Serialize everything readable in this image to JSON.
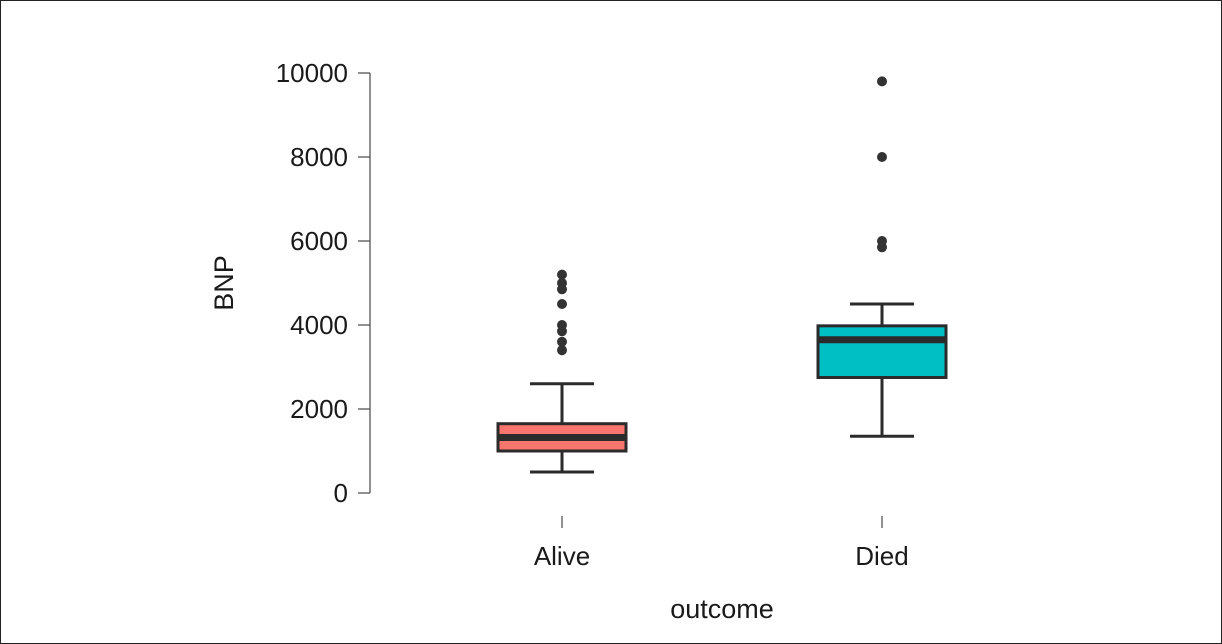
{
  "chart_data": {
    "type": "box",
    "xlabel": "outcome",
    "ylabel": "BNP",
    "ylim": [
      0,
      10000
    ],
    "yticks": [
      0,
      2000,
      4000,
      6000,
      8000,
      10000
    ],
    "ytick_labels": [
      "0",
      "2000",
      "4000",
      "6000",
      "8000",
      "10000"
    ],
    "grid": false,
    "legend": "none",
    "categories": [
      "Alive",
      "Died"
    ],
    "boxes": [
      {
        "category": "Alive",
        "color": "#F8766D",
        "whisker_low": 500,
        "q1": 1000,
        "median": 1320,
        "q3": 1650,
        "whisker_high": 2600,
        "outliers": [
          3400,
          3600,
          3850,
          4000,
          4500,
          4850,
          5000,
          5200
        ]
      },
      {
        "category": "Died",
        "color": "#00BFC4",
        "whisker_low": 1350,
        "q1": 2750,
        "median": 3650,
        "q3": 3980,
        "whisker_high": 4500,
        "outliers": [
          5850,
          6000,
          8000,
          9800
        ]
      }
    ]
  }
}
